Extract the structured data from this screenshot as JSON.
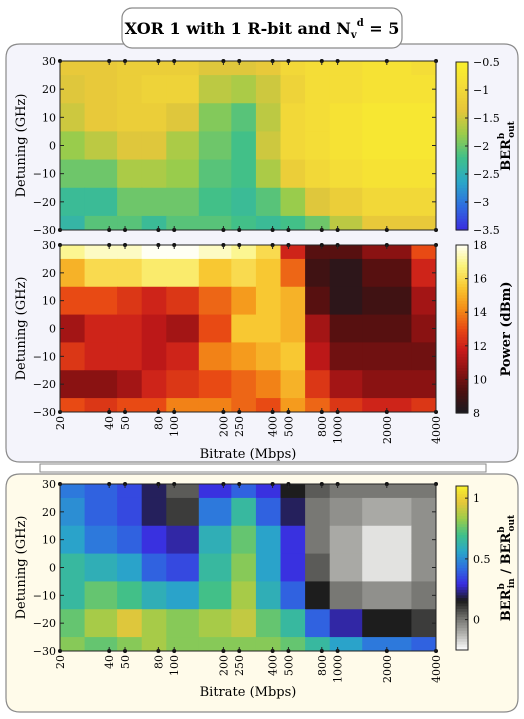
{
  "title": {
    "main": "XOR 1 with 1 R-bit and N",
    "sub": "v",
    "sup": "d",
    "tail": " = 5"
  },
  "colors": {
    "panel_top_bg": "#f4f4fb",
    "panel_bottom_bg": "#fffbea",
    "panel_border": "#8a8a8a"
  },
  "axes": {
    "xlabel": "Bitrate (Mbps)",
    "ylabel": "Detuning (GHz)",
    "xscale": "log",
    "xlim": [
      20,
      4000
    ],
    "ylim": [
      -30,
      30
    ],
    "xticks": [
      20,
      40,
      50,
      80,
      100,
      200,
      250,
      400,
      500,
      800,
      1000,
      2000,
      4000
    ],
    "xtick_labels": [
      "20",
      "40",
      "50",
      "80",
      "100",
      "200",
      "250",
      "400",
      "500",
      "800",
      "1000",
      "2000",
      "4000"
    ],
    "yticks": [
      -30,
      -20,
      -10,
      0,
      10,
      20,
      30
    ],
    "ytick_labels": [
      "−30",
      "−20",
      "−10",
      "0",
      "10",
      "20",
      "30"
    ]
  },
  "chart_data": [
    {
      "type": "heatmap",
      "xlabel": "",
      "ylabel": "Detuning (GHz)",
      "colorbar_label": "BER",
      "colorbar_label_sup": "b",
      "colorbar_label_sub": "out",
      "colorbar_ticks": [
        -3.5,
        -3,
        -2.5,
        -2,
        -1.5,
        -1,
        -0.5
      ],
      "colorbar_tick_labels": [
        "−3.5",
        "−3",
        "−2.5",
        "−2",
        "−1.5",
        "−1",
        "−0.5"
      ],
      "zlim": [
        -3.5,
        -0.5
      ],
      "colormap": [
        "#3a2ce0",
        "#2e6ee0",
        "#2aa7c8",
        "#3fc08a",
        "#9ccc4a",
        "#e6c63a",
        "#f4dc38",
        "#f9f02c"
      ],
      "x": [
        20,
        40,
        50,
        80,
        100,
        200,
        250,
        400,
        500,
        800,
        1000,
        2000,
        4000
      ],
      "y": [
        30,
        20,
        10,
        0,
        -10,
        -20,
        -30
      ],
      "z": [
        [
          -1.3,
          -1.3,
          -1.2,
          -1.2,
          -1.2,
          -1.4,
          -1.4,
          -1.3,
          -1.0,
          -0.9,
          -0.9,
          -0.8,
          -0.9
        ],
        [
          -1.4,
          -1.3,
          -1.2,
          -1.1,
          -1.1,
          -1.6,
          -1.7,
          -1.5,
          -1.1,
          -0.9,
          -0.9,
          -0.8,
          -0.8
        ],
        [
          -1.5,
          -1.3,
          -1.2,
          -1.2,
          -1.4,
          -1.9,
          -2.1,
          -1.6,
          -1.0,
          -0.9,
          -0.8,
          -0.7,
          -0.7
        ],
        [
          -1.8,
          -1.6,
          -1.4,
          -1.4,
          -1.7,
          -2.0,
          -2.2,
          -1.5,
          -1.0,
          -0.9,
          -0.8,
          -0.7,
          -0.7
        ],
        [
          -2.0,
          -2.0,
          -1.7,
          -1.7,
          -1.8,
          -2.1,
          -2.2,
          -1.7,
          -1.2,
          -1.0,
          -0.9,
          -0.8,
          -0.8
        ],
        [
          -2.3,
          -2.3,
          -2.0,
          -2.0,
          -2.0,
          -2.2,
          -2.3,
          -2.1,
          -1.8,
          -1.4,
          -1.2,
          -1.0,
          -1.0
        ],
        [
          -2.4,
          -2.1,
          -2.1,
          -2.3,
          -2.1,
          -2.1,
          -2.2,
          -2.3,
          -2.2,
          -2.0,
          -1.6,
          -1.3,
          -1.3
        ]
      ]
    },
    {
      "type": "heatmap",
      "xlabel": "Bitrate (Mbps)",
      "ylabel": "Detuning (GHz)",
      "colorbar_label": "Power (dBm)",
      "colorbar_ticks": [
        8,
        10,
        12,
        14,
        16,
        18
      ],
      "colorbar_tick_labels": [
        "8",
        "10",
        "12",
        "14",
        "16",
        "18"
      ],
      "zlim": [
        8,
        18
      ],
      "colormap": [
        "#1a1a20",
        "#4a1010",
        "#8a1212",
        "#c81a1a",
        "#e84a14",
        "#f49018",
        "#f8c832",
        "#fbf47a",
        "#fffff4"
      ],
      "x": [
        20,
        40,
        50,
        80,
        100,
        200,
        250,
        400,
        500,
        800,
        1000,
        2000,
        4000
      ],
      "y": [
        30,
        20,
        10,
        0,
        -10,
        -20,
        -30
      ],
      "z": [
        [
          17.0,
          17.5,
          17.5,
          18.0,
          18.0,
          17.5,
          17.0,
          16.0,
          12.0,
          9.5,
          9.5,
          10.5,
          13.0
        ],
        [
          15.0,
          16.0,
          16.0,
          16.5,
          16.5,
          15.5,
          16.0,
          15.5,
          13.5,
          9.0,
          8.5,
          9.5,
          12.0
        ],
        [
          13.0,
          13.0,
          12.5,
          12.0,
          12.5,
          13.5,
          14.5,
          15.5,
          15.0,
          9.5,
          8.5,
          9.0,
          11.0
        ],
        [
          11.0,
          12.0,
          12.0,
          11.5,
          11.0,
          13.0,
          15.5,
          15.5,
          15.0,
          11.0,
          9.5,
          9.5,
          10.5
        ],
        [
          12.5,
          12.0,
          12.0,
          11.5,
          12.0,
          14.0,
          14.5,
          15.0,
          15.5,
          11.5,
          10.0,
          10.0,
          10.0
        ],
        [
          10.5,
          10.5,
          11.0,
          12.0,
          12.5,
          13.0,
          13.5,
          14.0,
          15.0,
          12.5,
          11.0,
          10.5,
          10.5
        ],
        [
          13.0,
          12.5,
          13.0,
          13.0,
          14.0,
          14.0,
          13.5,
          13.0,
          14.5,
          13.5,
          12.5,
          12.0,
          12.5
        ]
      ]
    },
    {
      "type": "heatmap",
      "xlabel": "Bitrate (Mbps)",
      "ylabel": "Detuning (GHz)",
      "colorbar_label": "BER",
      "colorbar_label_sup1": "b",
      "colorbar_label_sub1": "in",
      "colorbar_label_mid": " / BER",
      "colorbar_label_sup2": "b",
      "colorbar_label_sub2": "out",
      "colorbar_ticks": [
        0,
        0.5,
        1
      ],
      "colorbar_tick_labels": [
        "0",
        "0.5",
        "1"
      ],
      "zlim": [
        -0.25,
        1.1
      ],
      "colormap": [
        "#ffffff",
        "#b0b0ac",
        "#6e6e6a",
        "#1a1a1a",
        "#3a2ce0",
        "#2e6ee0",
        "#2aa7c8",
        "#3fc08a",
        "#9ccc4a",
        "#e6c63a",
        "#f9f02c"
      ],
      "x": [
        20,
        40,
        50,
        80,
        100,
        200,
        250,
        400,
        500,
        800,
        1000,
        2000,
        4000
      ],
      "y": [
        30,
        20,
        10,
        0,
        -10,
        -20,
        -30
      ],
      "z": [
        [
          0.45,
          0.4,
          0.35,
          0.2,
          0.05,
          0.3,
          0.4,
          0.3,
          0.15,
          0.05,
          0.0,
          0.0,
          0.0
        ],
        [
          0.5,
          0.4,
          0.35,
          0.2,
          0.1,
          0.45,
          0.65,
          0.4,
          0.2,
          0.0,
          -0.05,
          -0.1,
          -0.05
        ],
        [
          0.55,
          0.45,
          0.4,
          0.3,
          0.25,
          0.6,
          0.75,
          0.55,
          0.3,
          0.0,
          -0.1,
          -0.2,
          -0.05
        ],
        [
          0.65,
          0.6,
          0.55,
          0.4,
          0.35,
          0.65,
          0.8,
          0.55,
          0.3,
          0.05,
          -0.1,
          -0.2,
          -0.05
        ],
        [
          0.65,
          0.75,
          0.7,
          0.6,
          0.55,
          0.7,
          0.85,
          0.6,
          0.4,
          0.15,
          0.0,
          -0.05,
          0.0
        ],
        [
          0.75,
          0.85,
          0.95,
          0.85,
          0.8,
          0.85,
          0.9,
          0.75,
          0.65,
          0.4,
          0.25,
          0.15,
          0.1
        ],
        [
          0.8,
          0.75,
          0.8,
          0.85,
          0.8,
          0.8,
          0.8,
          0.8,
          0.75,
          0.65,
          0.55,
          0.45,
          0.4
        ]
      ]
    }
  ]
}
